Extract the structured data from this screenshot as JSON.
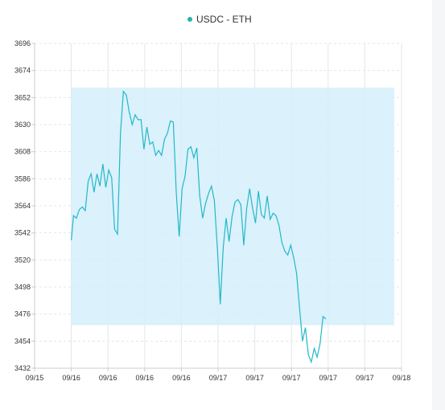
{
  "chart_data": {
    "type": "line",
    "legend": {
      "label": "USDC - ETH",
      "position": "top-center"
    },
    "colors": {
      "line": "#22b8c8",
      "band_fill": "#d5effb",
      "grid": "#e3e6ea",
      "axis": "#c9ccd1",
      "marker": "#21b5a7"
    },
    "grid": true,
    "ylim": [
      3432,
      3696
    ],
    "y_ticks": [
      "3696",
      "3674",
      "3652",
      "3630",
      "3608",
      "3586",
      "3564",
      "3542",
      "3520",
      "3498",
      "3476",
      "3454",
      "3432"
    ],
    "x_ticks": [
      "09/15",
      "09/16",
      "09/16",
      "09/16",
      "09/16",
      "09/17",
      "09/17",
      "09/17",
      "09/17",
      "09/17",
      "09/18"
    ],
    "band": {
      "x_start": 1,
      "x_end": 9.8,
      "y_low": 3467,
      "y_high": 3660
    },
    "series": [
      {
        "name": "USDC - ETH",
        "points": [
          [
            1.0,
            3536
          ],
          [
            1.06,
            3556
          ],
          [
            1.14,
            3554
          ],
          [
            1.22,
            3561
          ],
          [
            1.3,
            3563
          ],
          [
            1.38,
            3560
          ],
          [
            1.46,
            3584
          ],
          [
            1.54,
            3590
          ],
          [
            1.62,
            3575
          ],
          [
            1.7,
            3590
          ],
          [
            1.78,
            3580
          ],
          [
            1.86,
            3598
          ],
          [
            1.94,
            3579
          ],
          [
            2.02,
            3593
          ],
          [
            2.1,
            3587
          ],
          [
            2.18,
            3545
          ],
          [
            2.26,
            3541
          ],
          [
            2.34,
            3623
          ],
          [
            2.42,
            3657
          ],
          [
            2.5,
            3654
          ],
          [
            2.58,
            3640
          ],
          [
            2.66,
            3630
          ],
          [
            2.74,
            3638
          ],
          [
            2.82,
            3634
          ],
          [
            2.9,
            3634
          ],
          [
            2.98,
            3610
          ],
          [
            3.06,
            3628
          ],
          [
            3.14,
            3614
          ],
          [
            3.22,
            3616
          ],
          [
            3.3,
            3605
          ],
          [
            3.38,
            3609
          ],
          [
            3.46,
            3605
          ],
          [
            3.54,
            3618
          ],
          [
            3.62,
            3623
          ],
          [
            3.7,
            3633
          ],
          [
            3.78,
            3632
          ],
          [
            3.86,
            3575
          ],
          [
            3.94,
            3539
          ],
          [
            4.02,
            3578
          ],
          [
            4.1,
            3588
          ],
          [
            4.18,
            3610
          ],
          [
            4.26,
            3612
          ],
          [
            4.34,
            3603
          ],
          [
            4.42,
            3611
          ],
          [
            4.5,
            3572
          ],
          [
            4.58,
            3554
          ],
          [
            4.66,
            3566
          ],
          [
            4.74,
            3574
          ],
          [
            4.82,
            3580
          ],
          [
            4.9,
            3568
          ],
          [
            4.98,
            3530
          ],
          [
            5.06,
            3484
          ],
          [
            5.14,
            3530
          ],
          [
            5.22,
            3554
          ],
          [
            5.3,
            3535
          ],
          [
            5.38,
            3555
          ],
          [
            5.46,
            3567
          ],
          [
            5.54,
            3569
          ],
          [
            5.62,
            3565
          ],
          [
            5.7,
            3532
          ],
          [
            5.78,
            3562
          ],
          [
            5.86,
            3578
          ],
          [
            5.94,
            3562
          ],
          [
            6.02,
            3550
          ],
          [
            6.1,
            3576
          ],
          [
            6.18,
            3557
          ],
          [
            6.26,
            3554
          ],
          [
            6.34,
            3572
          ],
          [
            6.42,
            3553
          ],
          [
            6.5,
            3558
          ],
          [
            6.58,
            3556
          ],
          [
            6.66,
            3548
          ],
          [
            6.74,
            3534
          ],
          [
            6.82,
            3527
          ],
          [
            6.9,
            3524
          ],
          [
            6.98,
            3532
          ],
          [
            7.06,
            3522
          ],
          [
            7.14,
            3509
          ],
          [
            7.22,
            3481
          ],
          [
            7.3,
            3454
          ],
          [
            7.38,
            3465
          ],
          [
            7.46,
            3443
          ],
          [
            7.54,
            3437
          ],
          [
            7.62,
            3448
          ],
          [
            7.7,
            3441
          ],
          [
            7.78,
            3452
          ],
          [
            7.86,
            3474
          ],
          [
            7.94,
            3472
          ]
        ]
      }
    ]
  }
}
